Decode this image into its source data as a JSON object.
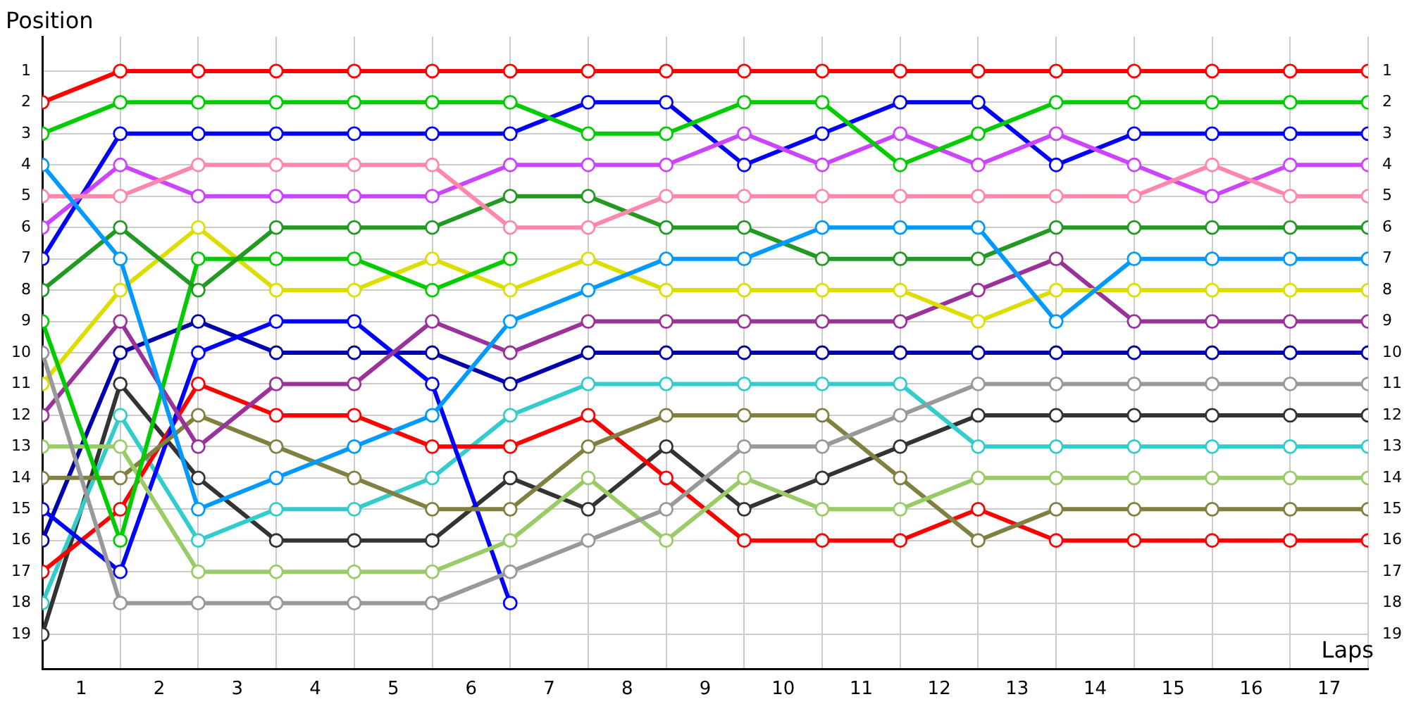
{
  "chart_data": {
    "type": "line",
    "xlabel": "Laps",
    "ylabel": "Position",
    "x": [
      0,
      1,
      2,
      3,
      4,
      5,
      6,
      7,
      8,
      9,
      10,
      11,
      12,
      13,
      14,
      15,
      16,
      17
    ],
    "xlim": [
      0,
      17
    ],
    "xticks": [
      {
        "value": 0.5,
        "label": "1"
      },
      {
        "value": 1,
        "label": null
      },
      {
        "value": 1.5,
        "label": "2"
      },
      {
        "value": 2,
        "label": null
      },
      {
        "value": 2.5,
        "label": "3"
      },
      {
        "value": 3,
        "label": null
      },
      {
        "value": 3.5,
        "label": "4"
      },
      {
        "value": 4,
        "label": null
      },
      {
        "value": 4.5,
        "label": "5"
      },
      {
        "value": 5,
        "label": null
      },
      {
        "value": 5.5,
        "label": "6"
      },
      {
        "value": 6,
        "label": null
      },
      {
        "value": 6.5,
        "label": "7"
      },
      {
        "value": 7,
        "label": null
      },
      {
        "value": 7.5,
        "label": "8"
      },
      {
        "value": 8,
        "label": null
      },
      {
        "value": 8.5,
        "label": "9"
      },
      {
        "value": 9,
        "label": null
      },
      {
        "value": 9.5,
        "label": "10"
      },
      {
        "value": 10,
        "label": null
      },
      {
        "value": 10.5,
        "label": "11"
      },
      {
        "value": 11,
        "label": null
      },
      {
        "value": 11.5,
        "label": "12"
      },
      {
        "value": 12,
        "label": null
      },
      {
        "value": 12.5,
        "label": "13"
      },
      {
        "value": 13,
        "label": null
      },
      {
        "value": 13.5,
        "label": "14"
      },
      {
        "value": 14,
        "label": null
      },
      {
        "value": 14.5,
        "label": "15"
      },
      {
        "value": 15,
        "label": null
      },
      {
        "value": 15.5,
        "label": "16"
      },
      {
        "value": 16,
        "label": null
      },
      {
        "value": 16.5,
        "label": "17"
      },
      {
        "value": 17,
        "label": null
      }
    ],
    "ylim": [
      20.1,
      -0.1
    ],
    "yticks": [
      1,
      2,
      3,
      4,
      5,
      6,
      7,
      8,
      9,
      10,
      11,
      12,
      13,
      14,
      15,
      16,
      17,
      18,
      19
    ],
    "y2lim": [
      20.1,
      -0.1
    ],
    "y2ticks": [
      1,
      2,
      3,
      4,
      5,
      6,
      7,
      8,
      9,
      10,
      11,
      12,
      13,
      14,
      15,
      16,
      17,
      18,
      19
    ],
    "grid": true,
    "marker": "circle",
    "line_style": "solid",
    "series": [
      {
        "color": "#ff0000",
        "values": [
          2,
          1,
          1,
          1,
          1,
          1,
          1,
          1,
          1,
          1,
          1,
          1,
          1,
          1,
          1,
          1,
          1,
          1
        ]
      },
      {
        "color": "#00cc00",
        "values": [
          3,
          2,
          2,
          2,
          2,
          2,
          2,
          3,
          3,
          2,
          2,
          4,
          3,
          2,
          2,
          2,
          2,
          2
        ]
      },
      {
        "color": "#0099ff",
        "values": [
          4,
          7,
          15,
          14,
          13,
          12,
          9,
          8,
          7,
          7,
          6,
          6,
          6,
          9,
          7,
          7,
          7,
          7
        ]
      },
      {
        "color": "#ff88aa",
        "values": [
          5,
          5,
          4,
          4,
          4,
          4,
          6,
          6,
          5,
          5,
          5,
          5,
          5,
          5,
          5,
          4,
          5,
          5
        ]
      },
      {
        "color": "#cc44ff",
        "values": [
          6,
          4,
          5,
          5,
          5,
          5,
          4,
          4,
          4,
          3,
          4,
          3,
          4,
          3,
          4,
          5,
          4,
          4
        ]
      },
      {
        "color": "#0000ff",
        "values": [
          7,
          3,
          3,
          3,
          3,
          3,
          3,
          2,
          2,
          4,
          3,
          2,
          2,
          4,
          3,
          3,
          3,
          3
        ]
      },
      {
        "color": "#229922",
        "values": [
          8,
          6,
          8,
          6,
          6,
          6,
          5,
          5,
          6,
          6,
          7,
          7,
          7,
          6,
          6,
          6,
          6,
          6
        ]
      },
      {
        "color": "#00cc00",
        "values": [
          9,
          16,
          7,
          7,
          7,
          8,
          7,
          null,
          null,
          null,
          null,
          null,
          null,
          null,
          null,
          null,
          null,
          null
        ]
      },
      {
        "color": "#999999",
        "values": [
          10,
          18,
          18,
          18,
          18,
          18,
          17,
          16,
          15,
          13,
          13,
          12,
          11,
          11,
          11,
          11,
          11,
          11
        ]
      },
      {
        "color": "#dddd00",
        "values": [
          11,
          8,
          6,
          8,
          8,
          7,
          8,
          7,
          8,
          8,
          8,
          8,
          9,
          8,
          8,
          8,
          8,
          8
        ]
      },
      {
        "color": "#993399",
        "values": [
          12,
          9,
          13,
          11,
          11,
          9,
          10,
          9,
          9,
          9,
          9,
          9,
          8,
          7,
          9,
          9,
          9,
          9
        ]
      },
      {
        "color": "#99cc66",
        "values": [
          13,
          13,
          17,
          17,
          17,
          17,
          16,
          14,
          16,
          14,
          15,
          15,
          14,
          14,
          14,
          14,
          14,
          14
        ]
      },
      {
        "color": "#808040",
        "values": [
          14,
          14,
          12,
          13,
          14,
          15,
          15,
          13,
          12,
          12,
          12,
          14,
          16,
          15,
          15,
          15,
          15,
          15
        ]
      },
      {
        "color": "#0000ff",
        "values": [
          15,
          17,
          10,
          9,
          9,
          11,
          18,
          null,
          null,
          null,
          null,
          null,
          null,
          null,
          null,
          null,
          null,
          null
        ]
      },
      {
        "color": "#0000aa",
        "values": [
          16,
          10,
          9,
          10,
          10,
          10,
          11,
          10,
          10,
          10,
          10,
          10,
          10,
          10,
          10,
          10,
          10,
          10
        ]
      },
      {
        "color": "#ff0000",
        "values": [
          17,
          15,
          11,
          12,
          12,
          13,
          13,
          12,
          14,
          16,
          16,
          16,
          15,
          16,
          16,
          16,
          16,
          16
        ]
      },
      {
        "color": "#33cccc",
        "values": [
          18,
          12,
          16,
          15,
          15,
          14,
          12,
          11,
          11,
          11,
          11,
          11,
          13,
          13,
          13,
          13,
          13,
          13
        ]
      },
      {
        "color": "#333333",
        "values": [
          19,
          11,
          14,
          16,
          16,
          16,
          14,
          15,
          13,
          15,
          14,
          13,
          12,
          12,
          12,
          12,
          12,
          12
        ]
      }
    ]
  }
}
